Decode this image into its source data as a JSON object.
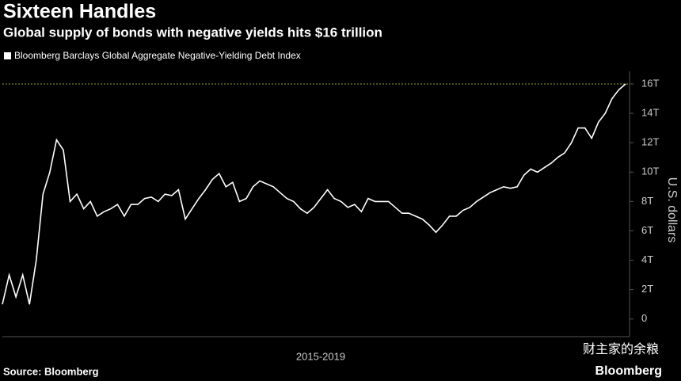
{
  "chart_data": {
    "type": "line",
    "title": "Sixteen Handles",
    "subtitle": "Global supply of bonds with negative yields hits $16 trillion",
    "legend": "Bloomberg Barclays Global Aggregate Negative-Yielding Debt Index",
    "xlabel": "2015-2019",
    "ylabel": "U.S. dollars",
    "source": "Source: Bloomberg",
    "brand": "Bloomberg",
    "watermark": "财主家的余粮",
    "color": "#ffffff",
    "reference_line": 16,
    "reference_color": "#8ea83a",
    "values": [
      1,
      3,
      1.5,
      3,
      1,
      4,
      8.5,
      10,
      12.2,
      11.5,
      8,
      8.5,
      7.5,
      8,
      7,
      7.3,
      7.5,
      7.8,
      7,
      7.8,
      7.8,
      8.2,
      8.3,
      8.0,
      8.5,
      8.4,
      8.8,
      6.8,
      7.5,
      8.2,
      8.8,
      9.5,
      9.9,
      9.0,
      9.3,
      8.0,
      8.2,
      9.0,
      9.4,
      9.2,
      9.0,
      8.6,
      8.2,
      8.0,
      7.5,
      7.2,
      7.6,
      8.2,
      8.8,
      8.2,
      8.0,
      7.6,
      7.8,
      7.3,
      8.2,
      8.0,
      8.0,
      8.0,
      7.6,
      7.2,
      7.2,
      7.0,
      6.8,
      6.4,
      5.9,
      6.4,
      7.0,
      7.0,
      7.4,
      7.6,
      8.0,
      8.3,
      8.6,
      8.8,
      9.0,
      8.9,
      9.0,
      9.8,
      10.2,
      10.0,
      10.3,
      10.6,
      11.0,
      11.3,
      12.0,
      13.0,
      13.0,
      12.3,
      13.4,
      14.0,
      15.0,
      15.6,
      16.0
    ],
    "ylim": [
      -1.2,
      17.4
    ],
    "yticks": [
      0,
      {
        "value": 2,
        "label": "2T"
      },
      {
        "value": 4,
        "label": "4T"
      },
      {
        "value": 6,
        "label": "6T"
      },
      {
        "value": 8,
        "label": "8T"
      },
      {
        "value": 10,
        "label": "10T"
      },
      {
        "value": 12,
        "label": "12T"
      },
      {
        "value": 14,
        "label": "14T"
      },
      {
        "value": 16,
        "label": "16T"
      }
    ]
  }
}
